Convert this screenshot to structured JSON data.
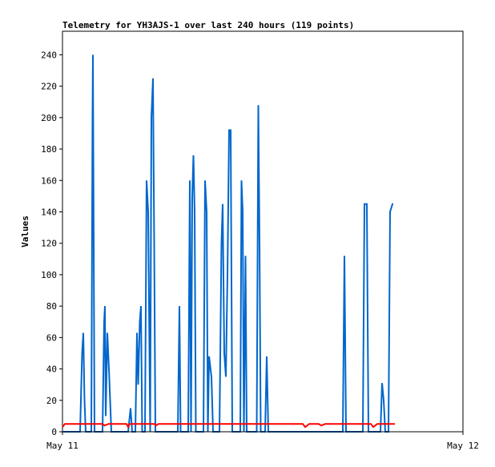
{
  "chart_data": {
    "type": "line",
    "title": "Telemetry for YH3AJS-1 over last 240 hours (119 points)",
    "xlabel": "",
    "ylabel": "Values",
    "x_ticks": [
      "May 11",
      "May 12"
    ],
    "ylim": [
      0,
      255
    ],
    "y_ticks": [
      0,
      20,
      40,
      60,
      80,
      100,
      120,
      140,
      160,
      180,
      200,
      220,
      240
    ],
    "grid": false,
    "colors": {
      "frame": "#000000",
      "series_blue": "#0066cc",
      "series_red": "#ff0000",
      "series_black": "#000000"
    },
    "series": [
      {
        "color": "#0066cc",
        "points": [
          [
            0.0,
            0
          ],
          [
            0.044,
            0
          ],
          [
            0.049,
            50
          ],
          [
            0.052,
            63
          ],
          [
            0.055,
            20
          ],
          [
            0.058,
            0
          ],
          [
            0.072,
            0
          ],
          [
            0.075,
            200
          ],
          [
            0.076,
            240
          ],
          [
            0.078,
            120
          ],
          [
            0.08,
            0
          ],
          [
            0.1,
            0
          ],
          [
            0.104,
            70
          ],
          [
            0.106,
            80
          ],
          [
            0.108,
            10
          ],
          [
            0.112,
            63
          ],
          [
            0.116,
            40
          ],
          [
            0.122,
            0
          ],
          [
            0.164,
            0
          ],
          [
            0.17,
            15
          ],
          [
            0.174,
            0
          ],
          [
            0.182,
            0
          ],
          [
            0.186,
            63
          ],
          [
            0.189,
            30
          ],
          [
            0.193,
            70
          ],
          [
            0.196,
            80
          ],
          [
            0.199,
            0
          ],
          [
            0.206,
            0
          ],
          [
            0.21,
            160
          ],
          [
            0.214,
            140
          ],
          [
            0.219,
            0
          ],
          [
            0.222,
            200
          ],
          [
            0.226,
            225
          ],
          [
            0.229,
            120
          ],
          [
            0.232,
            0
          ],
          [
            0.288,
            0
          ],
          [
            0.292,
            80
          ],
          [
            0.295,
            0
          ],
          [
            0.314,
            0
          ],
          [
            0.318,
            160
          ],
          [
            0.321,
            0
          ],
          [
            0.324,
            150
          ],
          [
            0.327,
            176
          ],
          [
            0.33,
            140
          ],
          [
            0.333,
            0
          ],
          [
            0.352,
            0
          ],
          [
            0.356,
            160
          ],
          [
            0.36,
            140
          ],
          [
            0.363,
            0
          ],
          [
            0.366,
            48
          ],
          [
            0.372,
            35
          ],
          [
            0.376,
            0
          ],
          [
            0.392,
            0
          ],
          [
            0.397,
            120
          ],
          [
            0.4,
            145
          ],
          [
            0.404,
            50
          ],
          [
            0.408,
            35
          ],
          [
            0.412,
            100
          ],
          [
            0.416,
            192
          ],
          [
            0.42,
            192
          ],
          [
            0.424,
            0
          ],
          [
            0.444,
            0
          ],
          [
            0.447,
            160
          ],
          [
            0.45,
            140
          ],
          [
            0.453,
            0
          ],
          [
            0.457,
            112
          ],
          [
            0.46,
            0
          ],
          [
            0.485,
            0
          ],
          [
            0.489,
            208
          ],
          [
            0.492,
            120
          ],
          [
            0.495,
            0
          ],
          [
            0.506,
            0
          ],
          [
            0.51,
            48
          ],
          [
            0.514,
            0
          ],
          [
            0.7,
            0
          ],
          [
            0.704,
            112
          ],
          [
            0.708,
            0
          ],
          [
            0.75,
            0
          ],
          [
            0.754,
            145
          ],
          [
            0.76,
            145
          ],
          [
            0.764,
            0
          ],
          [
            0.794,
            0
          ],
          [
            0.798,
            31
          ],
          [
            0.802,
            20
          ],
          [
            0.806,
            0
          ],
          [
            0.814,
            0
          ],
          [
            0.818,
            140
          ],
          [
            0.824,
            145
          ],
          [
            0.826,
            145
          ]
        ]
      },
      {
        "color": "#ff0000",
        "points": [
          [
            0.0,
            3
          ],
          [
            0.006,
            5
          ],
          [
            0.1,
            5
          ],
          [
            0.105,
            4
          ],
          [
            0.115,
            5
          ],
          [
            0.16,
            5
          ],
          [
            0.164,
            3
          ],
          [
            0.168,
            5
          ],
          [
            0.23,
            5
          ],
          [
            0.233,
            4
          ],
          [
            0.24,
            5
          ],
          [
            0.6,
            5
          ],
          [
            0.606,
            3
          ],
          [
            0.616,
            5
          ],
          [
            0.64,
            5
          ],
          [
            0.646,
            4
          ],
          [
            0.656,
            5
          ],
          [
            0.77,
            5
          ],
          [
            0.776,
            3
          ],
          [
            0.786,
            5
          ],
          [
            0.83,
            5
          ]
        ]
      },
      {
        "color": "#000000",
        "points": [
          [
            0.0,
            0
          ],
          [
            0.83,
            0
          ]
        ]
      }
    ]
  }
}
